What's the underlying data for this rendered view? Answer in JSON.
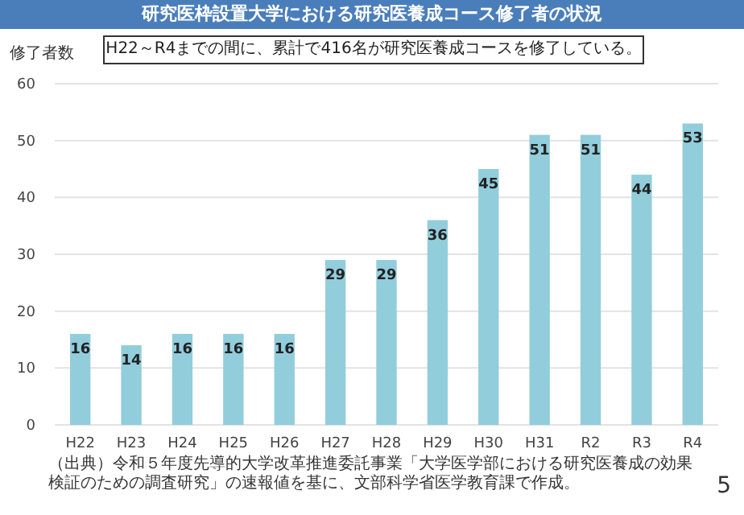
{
  "chart_data": {
    "type": "bar",
    "title": "研究医枠設置大学における研究医養成コース修了者の状況",
    "subtitle": "H22～R4までの間に、累計で416名が研究医養成コースを修了している。",
    "ylabel": "修了者数",
    "annotations": [
      "（出典）令和５年度先導的大学改革推進委託事業「大学医学部における研究医養成の効果検証のための調査研究」の速報値を基に、文部科学省医学教育課で作成。",
      "5"
    ],
    "categories": [
      "H22",
      "H23",
      "H24",
      "H25",
      "H26",
      "H27",
      "H28",
      "H29",
      "H30",
      "H31",
      "R2",
      "R3",
      "R4"
    ],
    "values": [
      16,
      14,
      16,
      16,
      16,
      29,
      29,
      36,
      45,
      51,
      51,
      44,
      53
    ],
    "color": "#92cddc",
    "ylim": [
      0,
      60
    ],
    "yticks": [
      0,
      10,
      20,
      30,
      40,
      50,
      60
    ],
    "grid": "y",
    "data_labels": true
  }
}
